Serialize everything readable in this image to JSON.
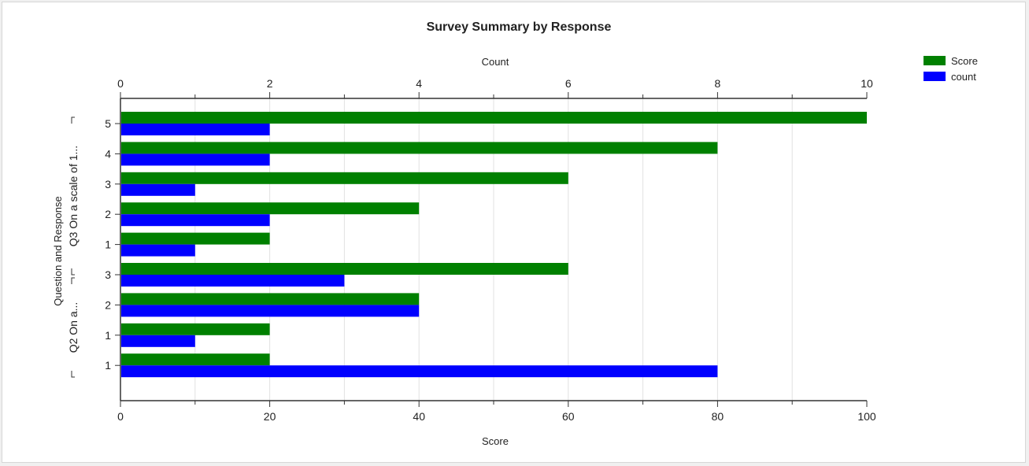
{
  "chart_data": {
    "type": "bar",
    "orientation": "horizontal",
    "title": "Survey Summary by Response",
    "xlabel_bottom": "Score",
    "xlabel_top": "Count",
    "ylabel": "Question and Response",
    "y_group_labels": [
      "Q2 On a...",
      "Q3 On a scale of 1..."
    ],
    "categories": [
      "5",
      "4",
      "3",
      "2",
      "1",
      "3",
      "2",
      "1",
      "1"
    ],
    "series": [
      {
        "name": "Score",
        "axis": "bottom",
        "color": "#008000",
        "values": [
          100,
          80,
          60,
          40,
          20,
          60,
          40,
          20,
          20
        ]
      },
      {
        "name": "count",
        "axis": "top",
        "color": "#0000ff",
        "values": [
          2,
          2,
          1,
          2,
          1,
          3,
          4,
          1,
          8
        ]
      }
    ],
    "xlim_bottom": [
      0,
      100
    ],
    "xticks_bottom": [
      0,
      20,
      40,
      60,
      80,
      100
    ],
    "xlim_top": [
      0,
      10
    ],
    "xticks_top": [
      0,
      2,
      4,
      6,
      8,
      10
    ],
    "grid": true,
    "legend_position": "top-right"
  }
}
